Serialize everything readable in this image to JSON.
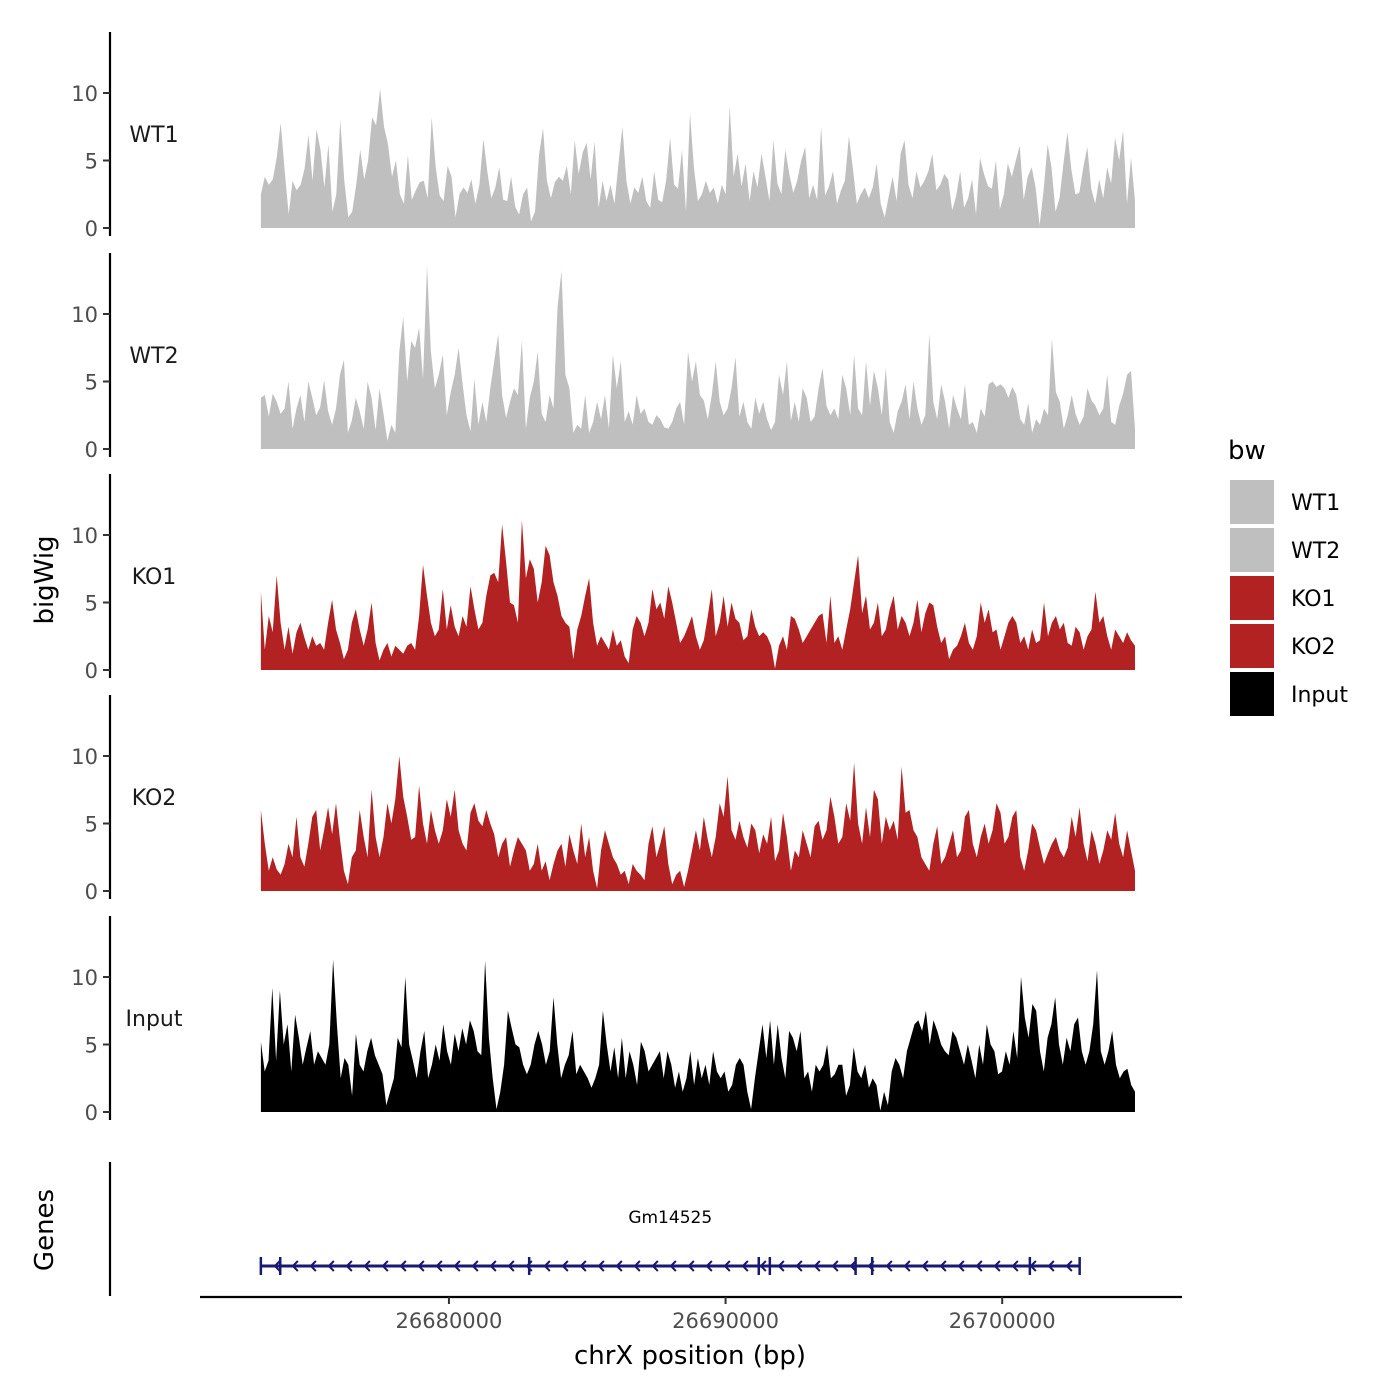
{
  "chart_data": {
    "type": "area",
    "title": "",
    "xlabel": "chrX position (bp)",
    "ylabel": "bigWig",
    "genes_label": "Genes",
    "xlim": [
      26671000,
      26706500
    ],
    "x_ticks": [
      26680000,
      26690000,
      26700000
    ],
    "x_tick_labels": [
      "26680000",
      "26690000",
      "26700000"
    ],
    "ylim": [
      0,
      14.5
    ],
    "y_ticks": [
      0,
      5,
      10
    ],
    "y_tick_labels": [
      "0",
      "5",
      "10"
    ],
    "legend": {
      "title": "bw",
      "position": "right",
      "entries": [
        {
          "label": "WT1",
          "color": "#bfbfbf"
        },
        {
          "label": "WT2",
          "color": "#bfbfbf"
        },
        {
          "label": "KO1",
          "color": "#b22222"
        },
        {
          "label": "KO2",
          "color": "#b22222"
        },
        {
          "label": "Input",
          "color": "#000000"
        }
      ]
    },
    "x_start": 26673200,
    "x_end": 26704800,
    "series": [
      {
        "name": "WT1",
        "label": "WT1",
        "color": "#bfbfbf",
        "values": [
          2.5,
          3.8,
          3.2,
          3.6,
          5.2,
          7.8,
          4.2,
          1.0,
          3.5,
          2.8,
          3.2,
          4.4,
          6.9,
          3.5,
          7.3,
          5.8,
          3.0,
          6.2,
          1.2,
          2.5,
          8.0,
          3.5,
          0.8,
          1.2,
          3.2,
          5.8,
          3.6,
          5.0,
          8.2,
          7.6,
          10.3,
          7.5,
          6.2,
          3.8,
          5.0,
          2.5,
          1.8,
          5.4,
          2.1,
          2.8,
          3.4,
          3.5,
          2.2,
          8.2,
          4.5,
          2.4,
          2.0,
          4.6,
          3.8,
          0.8,
          2.5,
          3.0,
          2.6,
          3.6,
          1.8,
          3.2,
          6.6,
          4.2,
          2.2,
          3.0,
          4.5,
          2.1,
          2.0,
          3.8,
          1.6,
          1.0,
          2.5,
          3.0,
          0.5,
          1.2,
          5.4,
          7.4,
          3.5,
          2.2,
          3.4,
          3.8,
          3.5,
          4.6,
          2.5,
          6.5,
          4.0,
          5.6,
          6.3,
          3.6,
          6.4,
          1.5,
          3.5,
          2.0,
          3.2,
          1.8,
          4.8,
          7.5,
          3.5,
          1.8,
          3.0,
          2.6,
          3.8,
          2.0,
          1.5,
          4.2,
          2.1,
          1.9,
          3.5,
          6.7,
          3.2,
          2.9,
          5.8,
          1.2,
          8.5,
          4.5,
          2.0,
          2.5,
          3.5,
          2.6,
          3.0,
          1.8,
          3.2,
          2.5,
          9.0,
          3.8,
          5.5,
          3.1,
          4.8,
          2.0,
          4.2,
          3.0,
          5.5,
          3.8,
          2.0,
          6.5,
          3.3,
          2.5,
          5.8,
          4.0,
          2.6,
          3.5,
          5.0,
          6.0,
          2.2,
          3.2,
          2.1,
          7.5,
          2.4,
          3.1,
          4.2,
          1.8,
          2.8,
          3.5,
          6.8,
          4.4,
          1.8,
          2.5,
          3.0,
          2.2,
          3.0,
          4.8,
          1.8,
          0.8,
          2.3,
          3.8,
          2.0,
          5.5,
          6.5,
          3.2,
          2.2,
          4.2,
          3.0,
          3.5,
          4.2,
          5.5,
          2.8,
          3.2,
          4.0,
          3.6,
          1.3,
          2.4,
          4.2,
          1.5,
          2.2,
          3.6,
          1.0,
          5.2,
          4.0,
          3.1,
          2.9,
          5.0,
          1.4,
          2.5,
          4.8,
          3.8,
          5.0,
          6.1,
          2.1,
          3.8,
          4.5,
          3.0,
          0.2,
          2.8,
          6.2,
          4.5,
          1.2,
          2.2,
          4.8,
          7.1,
          4.3,
          2.5,
          2.6,
          4.5,
          6.0,
          2.9,
          1.8,
          3.6,
          2.2,
          4.5,
          3.3,
          6.7,
          5.0,
          7.2,
          1.8,
          5.2,
          2.0
        ]
      },
      {
        "name": "WT2",
        "label": "WT2",
        "color": "#bfbfbf",
        "values": [
          3.8,
          4.0,
          2.4,
          4.1,
          3.5,
          2.6,
          3.0,
          5.0,
          1.5,
          3.0,
          4.0,
          2.0,
          5.0,
          3.8,
          2.5,
          3.1,
          5.1,
          2.8,
          1.8,
          3.0,
          5.5,
          6.6,
          1.2,
          2.1,
          3.8,
          2.8,
          1.5,
          5.0,
          3.8,
          1.4,
          4.5,
          2.6,
          0.6,
          1.8,
          1.2,
          7.2,
          9.8,
          5.0,
          8.0,
          7.5,
          9.0,
          5.2,
          13.6,
          7.2,
          4.5,
          5.5,
          7.0,
          2.5,
          4.2,
          5.5,
          7.5,
          4.8,
          2.5,
          1.3,
          5.2,
          1.8,
          3.5,
          2.0,
          4.5,
          6.5,
          8.5,
          4.0,
          2.3,
          3.5,
          4.5,
          4.0,
          8.0,
          1.5,
          3.8,
          5.0,
          7.2,
          2.6,
          2.0,
          4.0,
          3.0,
          10.5,
          13.2,
          5.5,
          4.5,
          1.2,
          1.8,
          1.5,
          4.0,
          1.2,
          2.0,
          3.5,
          2.2,
          4.0,
          1.5,
          7.0,
          4.5,
          6.5,
          2.0,
          2.8,
          1.8,
          4.0,
          2.6,
          3.0,
          2.0,
          1.8,
          2.5,
          2.2,
          1.6,
          1.5,
          2.0,
          3.0,
          3.5,
          1.8,
          7.2,
          5.0,
          6.5,
          4.0,
          3.6,
          2.2,
          4.0,
          6.5,
          3.5,
          2.5,
          3.0,
          4.5,
          6.8,
          2.4,
          3.5,
          2.0,
          1.5,
          3.8,
          2.6,
          3.5,
          2.2,
          1.4,
          2.0,
          5.5,
          4.0,
          6.5,
          2.1,
          3.5,
          2.0,
          4.5,
          3.8,
          2.0,
          2.4,
          4.5,
          6.0,
          3.2,
          2.5,
          3.0,
          2.2,
          5.5,
          4.5,
          2.5,
          7.0,
          3.0,
          2.5,
          6.5,
          3.2,
          5.8,
          4.5,
          2.5,
          6.0,
          2.0,
          1.2,
          2.8,
          3.5,
          4.8,
          2.2,
          5.0,
          3.0,
          1.8,
          2.5,
          8.5,
          3.5,
          2.2,
          4.8,
          3.5,
          1.5,
          4.0,
          3.0,
          2.2,
          4.8,
          1.8,
          2.0,
          1.2,
          3.0,
          2.4,
          4.8,
          5.0,
          4.6,
          4.8,
          4.5,
          3.8,
          4.6,
          4.0,
          2.2,
          1.8,
          3.4,
          1.2,
          2.2,
          1.8,
          3.0,
          2.5,
          8.2,
          4.2,
          3.5,
          1.5,
          2.5,
          4.0,
          2.6,
          1.8,
          2.4,
          4.5,
          3.6,
          3.2,
          2.5,
          3.0,
          5.5,
          2.0,
          1.8,
          3.2,
          4.1,
          5.5,
          5.8,
          1.5
        ]
      },
      {
        "name": "KO1",
        "label": "KO1",
        "color": "#b22222",
        "values": [
          5.8,
          1.5,
          4.0,
          2.8,
          7.0,
          3.5,
          1.5,
          3.2,
          1.2,
          2.8,
          3.5,
          2.4,
          1.5,
          2.5,
          1.8,
          2.0,
          1.5,
          3.5,
          5.2,
          3.0,
          2.0,
          0.8,
          1.5,
          3.5,
          4.5,
          3.0,
          1.8,
          3.0,
          5.0,
          2.0,
          0.7,
          1.5,
          2.0,
          1.0,
          1.8,
          1.5,
          1.2,
          1.8,
          2.0,
          1.5,
          4.0,
          7.8,
          5.5,
          3.5,
          2.5,
          3.0,
          6.0,
          3.0,
          4.8,
          3.2,
          2.5,
          4.0,
          3.2,
          6.2,
          4.5,
          3.0,
          3.5,
          5.5,
          7.0,
          7.2,
          6.5,
          10.8,
          8.0,
          5.0,
          4.8,
          3.5,
          11.1,
          6.8,
          8.2,
          7.5,
          5.0,
          6.5,
          9.2,
          8.5,
          6.5,
          5.5,
          4.0,
          3.5,
          3.2,
          0.8,
          3.0,
          4.0,
          5.5,
          6.8,
          3.5,
          1.8,
          2.5,
          2.0,
          1.5,
          3.0,
          1.8,
          2.2,
          1.0,
          0.5,
          3.0,
          4.0,
          3.5,
          2.5,
          3.5,
          6.0,
          4.5,
          5.0,
          3.8,
          6.2,
          5.0,
          3.5,
          2.0,
          2.5,
          3.2,
          4.0,
          2.5,
          1.5,
          2.2,
          4.0,
          6.0,
          2.5,
          3.5,
          5.5,
          3.2,
          5.0,
          3.8,
          3.5,
          2.2,
          2.5,
          4.5,
          3.2,
          2.5,
          2.8,
          2.5,
          1.8,
          0.1,
          1.8,
          2.5,
          1.5,
          4.0,
          3.8,
          3.0,
          2.0,
          2.5,
          3.0,
          3.5,
          4.0,
          4.2,
          2.0,
          5.5,
          2.0,
          2.5,
          1.5,
          3.0,
          4.5,
          6.5,
          8.5,
          4.2,
          5.5,
          3.0,
          3.5,
          5.0,
          2.5,
          3.0,
          4.5,
          5.5,
          3.0,
          4.0,
          3.5,
          2.5,
          3.5,
          5.2,
          2.8,
          4.2,
          5.0,
          4.8,
          3.2,
          2.0,
          2.5,
          0.8,
          1.5,
          1.8,
          2.5,
          3.5,
          2.0,
          1.5,
          2.5,
          5.0,
          3.5,
          4.5,
          2.8,
          3.0,
          1.5,
          2.5,
          3.5,
          4.0,
          3.5,
          2.0,
          2.5,
          1.5,
          3.0,
          2.0,
          2.2,
          5.0,
          2.5,
          3.5,
          4.0,
          3.0,
          3.5,
          2.0,
          1.8,
          3.2,
          2.8,
          1.5,
          2.5,
          3.0,
          5.8,
          3.5,
          4.0,
          2.5,
          1.5,
          3.0,
          2.5,
          2.0,
          2.8,
          2.2,
          1.8
        ]
      },
      {
        "name": "KO2",
        "label": "KO2",
        "color": "#b22222",
        "values": [
          6.0,
          3.5,
          1.5,
          2.5,
          1.6,
          1.2,
          2.0,
          3.5,
          2.5,
          5.5,
          2.5,
          1.8,
          3.5,
          5.5,
          6.0,
          3.0,
          4.5,
          6.2,
          4.2,
          6.5,
          3.8,
          1.5,
          0.5,
          2.5,
          3.0,
          6.0,
          4.0,
          2.5,
          7.5,
          4.0,
          2.5,
          4.0,
          6.5,
          5.0,
          6.8,
          10.0,
          7.0,
          5.5,
          3.8,
          4.0,
          7.8,
          5.0,
          3.5,
          6.0,
          4.5,
          3.5,
          4.5,
          6.8,
          5.5,
          7.5,
          4.5,
          3.5,
          3.0,
          5.8,
          6.5,
          5.2,
          4.8,
          6.0,
          5.0,
          4.2,
          2.5,
          3.5,
          4.0,
          1.8,
          3.0,
          4.0,
          3.5,
          3.0,
          1.5,
          2.0,
          3.5,
          1.5,
          2.2,
          0.8,
          2.0,
          3.0,
          3.5,
          1.8,
          4.2,
          3.0,
          2.0,
          5.0,
          2.5,
          4.0,
          1.5,
          0.2,
          3.0,
          4.5,
          3.5,
          2.5,
          2.0,
          1.2,
          1.5,
          0.5,
          2.0,
          1.5,
          1.2,
          0.8,
          3.5,
          4.8,
          2.5,
          3.5,
          4.8,
          2.0,
          0.5,
          1.2,
          1.5,
          0.3,
          1.5,
          3.0,
          4.5,
          3.0,
          5.5,
          3.8,
          2.5,
          4.0,
          6.5,
          5.5,
          8.5,
          4.5,
          3.8,
          5.2,
          4.0,
          3.2,
          5.0,
          4.5,
          2.8,
          4.2,
          3.5,
          5.5,
          2.2,
          3.0,
          5.8,
          4.0,
          1.5,
          3.0,
          2.5,
          4.5,
          3.5,
          2.5,
          4.8,
          5.2,
          3.8,
          4.5,
          7.0,
          5.5,
          3.5,
          4.0,
          6.5,
          5.2,
          9.5,
          5.0,
          3.5,
          6.2,
          4.0,
          7.5,
          6.8,
          3.5,
          5.5,
          4.5,
          5.2,
          3.8,
          9.2,
          5.8,
          6.0,
          4.5,
          4.0,
          2.5,
          2.0,
          1.5,
          3.5,
          4.8,
          2.0,
          2.5,
          3.5,
          4.5,
          2.5,
          3.0,
          5.5,
          6.0,
          3.5,
          2.5,
          4.0,
          5.0,
          3.5,
          4.5,
          6.5,
          5.8,
          3.5,
          4.0,
          5.5,
          6.0,
          2.5,
          1.5,
          3.0,
          5.0,
          4.5,
          3.2,
          2.0,
          2.8,
          3.5,
          4.0,
          3.0,
          2.5,
          3.2,
          5.5,
          4.0,
          6.2,
          3.5,
          2.2,
          4.5,
          3.5,
          2.0,
          3.0,
          4.5,
          3.8,
          5.8,
          3.5,
          2.5,
          4.5,
          3.0,
          1.5
        ]
      },
      {
        "name": "Input",
        "label": "Input",
        "color": "#000000",
        "values": [
          5.2,
          3.0,
          3.8,
          9.2,
          3.8,
          9.0,
          5.0,
          6.5,
          3.0,
          7.2,
          5.5,
          3.5,
          4.8,
          6.0,
          3.5,
          4.5,
          4.0,
          3.5,
          5.0,
          11.3,
          6.5,
          2.5,
          4.0,
          3.5,
          1.2,
          5.8,
          3.5,
          3.0,
          4.5,
          5.5,
          4.2,
          3.5,
          2.8,
          0.5,
          1.5,
          2.5,
          5.5,
          4.8,
          10.0,
          5.0,
          3.8,
          2.5,
          4.5,
          6.0,
          2.5,
          3.5,
          5.0,
          3.8,
          6.5,
          4.5,
          3.5,
          5.8,
          4.5,
          6.2,
          5.0,
          6.8,
          6.0,
          4.5,
          4.2,
          11.2,
          5.5,
          2.5,
          0.2,
          1.5,
          3.5,
          7.5,
          6.2,
          5.0,
          4.8,
          3.5,
          2.8,
          3.5,
          5.0,
          6.0,
          5.0,
          3.5,
          4.5,
          8.5,
          5.0,
          2.5,
          3.5,
          4.2,
          6.0,
          2.8,
          3.5,
          3.0,
          2.5,
          1.8,
          2.5,
          3.5,
          7.5,
          5.0,
          3.0,
          4.8,
          2.5,
          5.5,
          2.5,
          4.5,
          3.5,
          2.0,
          5.2,
          4.5,
          3.0,
          3.5,
          4.0,
          4.5,
          2.5,
          4.5,
          3.5,
          1.8,
          3.0,
          1.5,
          2.5,
          4.5,
          2.0,
          4.0,
          2.5,
          3.5,
          2.0,
          4.5,
          3.0,
          2.5,
          3.0,
          1.5,
          2.0,
          3.5,
          4.0,
          3.5,
          1.5,
          0.2,
          2.5,
          4.5,
          6.5,
          4.0,
          6.8,
          3.5,
          6.5,
          4.0,
          2.5,
          6.0,
          5.5,
          4.5,
          6.0,
          2.5,
          3.0,
          1.5,
          3.5,
          3.0,
          3.5,
          5.0,
          2.5,
          2.8,
          3.5,
          3.5,
          1.2,
          2.0,
          4.8,
          3.0,
          2.5,
          3.5,
          1.8,
          2.5,
          2.0,
          0.1,
          1.5,
          0.5,
          3.0,
          4.0,
          3.5,
          2.5,
          4.5,
          5.5,
          6.5,
          6.8,
          6.0,
          7.5,
          5.0,
          6.8,
          6.0,
          5.0,
          4.5,
          4.2,
          6.0,
          5.5,
          4.5,
          3.5,
          5.0,
          3.8,
          2.5,
          5.0,
          3.5,
          6.5,
          5.0,
          4.5,
          2.8,
          3.0,
          4.5,
          3.5,
          6.0,
          4.0,
          10.0,
          7.0,
          5.5,
          8.0,
          7.5,
          4.5,
          3.0,
          5.5,
          6.5,
          8.5,
          5.0,
          3.5,
          5.5,
          4.5,
          6.5,
          7.0,
          4.5,
          3.5,
          4.5,
          6.5,
          10.5,
          4.5,
          3.5,
          4.5,
          6.0,
          3.5,
          2.5,
          3.0,
          3.2,
          2.0,
          1.5
        ]
      }
    ],
    "gene": {
      "name": "Gm14525",
      "color": "#191970",
      "start": 26673200,
      "end": 26702800,
      "strand": "-",
      "exon_boundaries": [
        26673200,
        26673900,
        26682900,
        26691200,
        26691600,
        26694700,
        26695300,
        26701000,
        26702800
      ]
    }
  }
}
